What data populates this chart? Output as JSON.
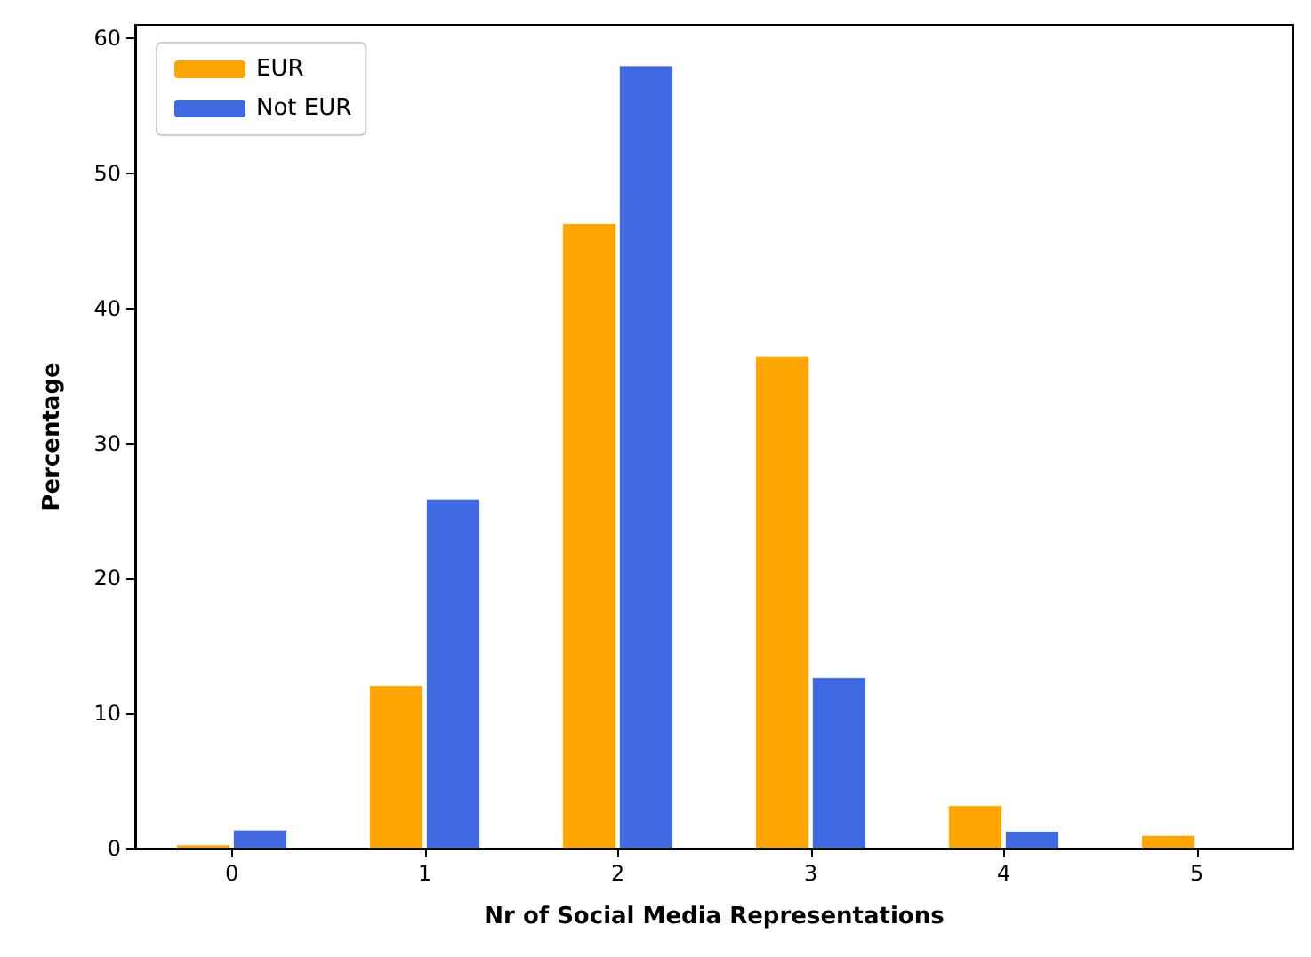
{
  "chart_data": {
    "type": "bar",
    "xlabel": "Nr of Social Media Representations",
    "ylabel": "Percentage",
    "categories": [
      "0",
      "1",
      "2",
      "3",
      "4",
      "5"
    ],
    "series": [
      {
        "name": "EUR",
        "color": "#ffa500",
        "values": [
          0.3,
          12.1,
          46.3,
          36.5,
          3.2,
          1.0
        ]
      },
      {
        "name": "Not EUR",
        "color": "#4169e1",
        "values": [
          1.4,
          25.9,
          58.0,
          12.7,
          1.3,
          null
        ]
      }
    ],
    "ylim": [
      0,
      61
    ],
    "yticks": [
      0,
      10,
      20,
      30,
      40,
      50,
      60
    ],
    "grid": false,
    "legend": "top left"
  }
}
